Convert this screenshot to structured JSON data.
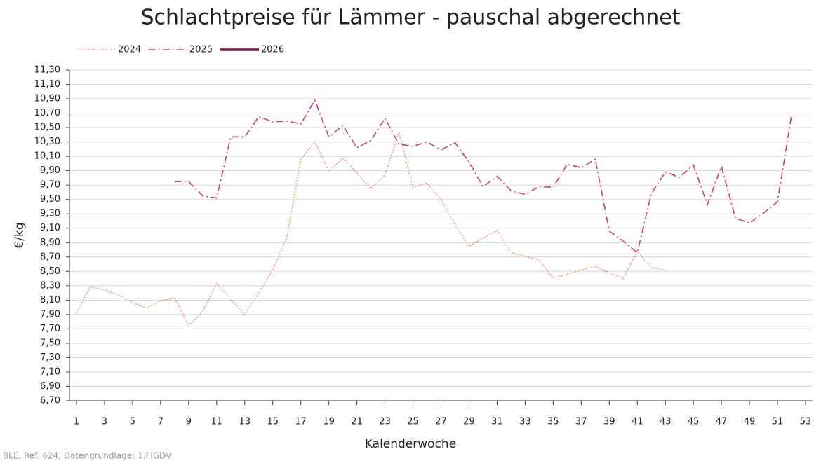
{
  "chart_data": {
    "type": "line",
    "title": "Schlachtpreise für Lämmer - pauschal abgerechnet",
    "x_label": "Kalenderwoche",
    "y_label": "€/kg",
    "source": "BLE, Ref. 624, Datengrundlage: 1.FlGDV",
    "grid": true,
    "legend": "top-left",
    "xlim": [
      0.5,
      53.5
    ],
    "xticks": [
      1,
      3,
      5,
      7,
      9,
      11,
      13,
      15,
      17,
      19,
      21,
      23,
      25,
      27,
      29,
      31,
      33,
      35,
      37,
      39,
      41,
      43,
      45,
      47,
      49,
      51,
      53
    ],
    "ylim": [
      6.7,
      11.3
    ],
    "yticks": [
      {
        "value": 6.7,
        "label": "6,70"
      },
      {
        "value": 6.9,
        "label": "6,90"
      },
      {
        "value": 7.1,
        "label": "7,10"
      },
      {
        "value": 7.3,
        "label": "7,30"
      },
      {
        "value": 7.5,
        "label": "7,50"
      },
      {
        "value": 7.7,
        "label": "7,70"
      },
      {
        "value": 7.9,
        "label": "7,90"
      },
      {
        "value": 8.1,
        "label": "8,10"
      },
      {
        "value": 8.3,
        "label": "8,30"
      },
      {
        "value": 8.5,
        "label": "8,50"
      },
      {
        "value": 8.7,
        "label": "8,70"
      },
      {
        "value": 8.9,
        "label": "8,90"
      },
      {
        "value": 9.1,
        "label": "9,10"
      },
      {
        "value": 9.3,
        "label": "9,30"
      },
      {
        "value": 9.5,
        "label": "9,50"
      },
      {
        "value": 9.7,
        "label": "9,70"
      },
      {
        "value": 9.9,
        "label": "9,90"
      },
      {
        "value": 10.1,
        "label": "10,10"
      },
      {
        "value": 10.3,
        "label": "10,30"
      },
      {
        "value": 10.5,
        "label": "10,50"
      },
      {
        "value": 10.7,
        "label": "10,70"
      },
      {
        "value": 10.9,
        "label": "10,90"
      },
      {
        "value": 11.1,
        "label": "11,10"
      },
      {
        "value": 11.3,
        "label": "11,30"
      }
    ],
    "series": [
      {
        "name": "2024",
        "color": "#f4876a",
        "style": "dotted",
        "x": [
          1,
          2,
          3,
          4,
          5,
          6,
          7,
          8,
          9,
          10,
          11,
          12,
          13,
          14,
          15,
          16,
          17,
          18,
          19,
          20,
          21,
          22,
          23,
          24,
          25,
          26,
          27,
          28,
          29,
          30,
          31,
          32,
          33,
          34,
          35,
          36,
          37,
          38,
          39,
          40,
          41,
          42,
          43
        ],
        "values": [
          7.92,
          8.29,
          8.24,
          8.17,
          8.06,
          7.99,
          8.09,
          8.13,
          7.74,
          7.94,
          8.33,
          8.1,
          7.9,
          8.2,
          8.52,
          8.97,
          10.06,
          10.3,
          9.9,
          10.07,
          9.87,
          9.65,
          9.84,
          10.44,
          9.67,
          9.73,
          9.5,
          9.15,
          8.85,
          8.96,
          9.07,
          8.76,
          8.71,
          8.66,
          8.41,
          8.46,
          8.52,
          8.57,
          8.48,
          8.4,
          8.78,
          8.55,
          8.52
        ]
      },
      {
        "name": "2025",
        "color": "#d63a6f",
        "style": "dashdot",
        "x": [
          8,
          9,
          10,
          11,
          12,
          13,
          14,
          15,
          16,
          17,
          18,
          19,
          20,
          21,
          22,
          23,
          24,
          25,
          26,
          27,
          28,
          29,
          30,
          31,
          32,
          33,
          34,
          35,
          36,
          37,
          38,
          39,
          40,
          41,
          42,
          43,
          44,
          45,
          46,
          47,
          48,
          49,
          50,
          51,
          52
        ],
        "values": [
          9.75,
          9.75,
          9.55,
          9.52,
          10.37,
          10.37,
          10.65,
          10.58,
          10.59,
          10.55,
          10.88,
          10.37,
          10.53,
          10.22,
          10.32,
          10.63,
          10.27,
          10.24,
          10.3,
          10.19,
          10.29,
          10.02,
          9.68,
          9.82,
          9.62,
          9.57,
          9.68,
          9.67,
          9.99,
          9.94,
          10.06,
          9.06,
          8.92,
          8.76,
          9.58,
          9.88,
          9.81,
          9.98,
          9.43,
          9.96,
          9.24,
          9.17,
          9.31,
          9.47,
          10.67
        ]
      },
      {
        "name": "2026",
        "color": "#7b1041",
        "style": "solid",
        "x": [],
        "values": []
      }
    ]
  }
}
